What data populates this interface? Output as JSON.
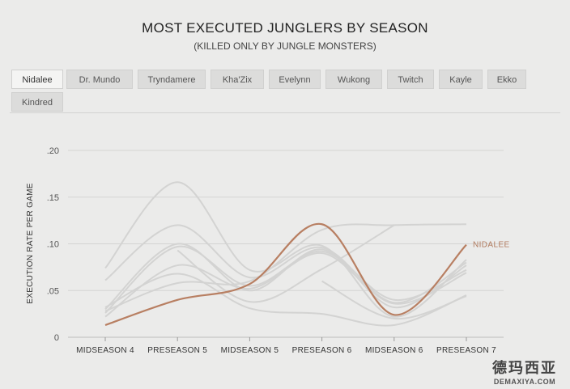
{
  "header": {
    "title": "MOST EXECUTED JUNGLERS BY SEASON",
    "subtitle": "(KILLED ONLY BY JUNGLE MONSTERS)"
  },
  "tabs": [
    {
      "label": "Nidalee",
      "active": true
    },
    {
      "label": "Dr. Mundo",
      "active": false
    },
    {
      "label": "Tryndamere",
      "active": false
    },
    {
      "label": "Kha'Zix",
      "active": false
    },
    {
      "label": "Evelynn",
      "active": false
    },
    {
      "label": "Wukong",
      "active": false
    },
    {
      "label": "Twitch",
      "active": false
    },
    {
      "label": "Kayle",
      "active": false
    },
    {
      "label": "Ekko",
      "active": false
    },
    {
      "label": "Kindred",
      "active": false
    }
  ],
  "watermark": {
    "cn": "德玛西亚",
    "en": "DEMAXIYA.COM"
  },
  "colors": {
    "highlight": "#b87f62",
    "background_series": "#d3d3d2",
    "grid": "#d4d4d3"
  },
  "chart_data": {
    "type": "line",
    "title": "MOST EXECUTED JUNGLERS BY SEASON",
    "subtitle": "(KILLED ONLY BY JUNGLE MONSTERS)",
    "ylabel": "EXECUTION RATE PER GAME",
    "xlabel": "",
    "categories": [
      "MIDSEASON 4",
      "PRESEASON 5",
      "MIDSEASON 5",
      "PRESEASON 6",
      "MIDSEASON 6",
      "PRESEASON 7"
    ],
    "ylim": [
      0,
      0.2
    ],
    "yticks": [
      {
        "value": 0,
        "label": "0"
      },
      {
        "value": 0.05,
        "label": ".05"
      },
      {
        "value": 0.1,
        "label": ".10"
      },
      {
        "value": 0.15,
        "label": ".15"
      },
      {
        "value": 0.2,
        "label": ".20"
      }
    ],
    "grid": true,
    "highlighted": {
      "name": "NIDALEE",
      "values": [
        0.013,
        0.04,
        0.057,
        0.121,
        0.024,
        0.099
      ]
    },
    "series": [
      {
        "values": [
          0.074,
          0.166,
          0.072,
          0.098,
          0.022,
          0.083
        ]
      },
      {
        "values": [
          0.061,
          0.12,
          0.064,
          0.096,
          0.037,
          0.08
        ]
      },
      {
        "values": [
          0.03,
          0.1,
          0.05,
          0.094,
          0.032,
          0.077
        ]
      },
      {
        "values": [
          0.026,
          0.097,
          0.055,
          0.092,
          0.04,
          0.072
        ]
      },
      {
        "values": [
          0.022,
          0.077,
          0.052,
          0.09,
          0.036,
          0.069
        ]
      },
      {
        "values": [
          0.028,
          0.058,
          0.06,
          0.115,
          0.12,
          0.121
        ]
      },
      {
        "values": [
          0.032,
          0.068,
          0.031,
          0.025,
          0.013,
          0.045
        ]
      },
      {
        "values": [
          null,
          0.093,
          0.038,
          0.073,
          0.12,
          null
        ]
      },
      {
        "values": [
          null,
          null,
          null,
          0.06,
          0.02,
          0.044
        ]
      }
    ]
  }
}
